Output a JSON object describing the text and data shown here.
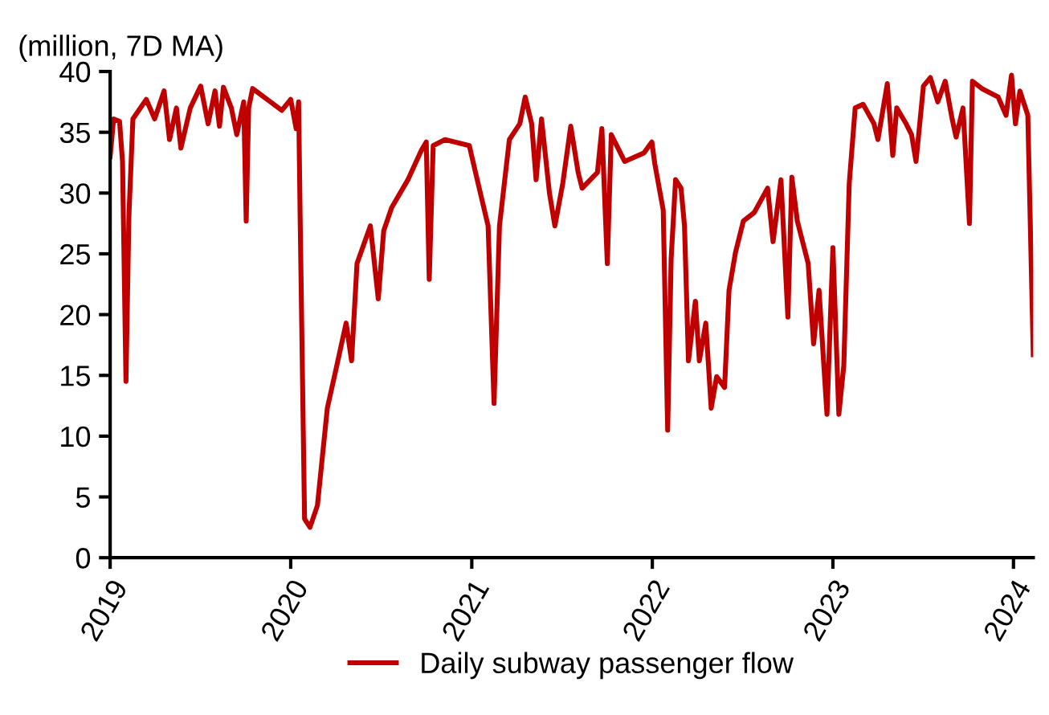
{
  "chart_data": {
    "type": "line",
    "ylabel": "(million, 7D MA)",
    "xlim": [
      "2019-01-01",
      "2024-02-10"
    ],
    "ylim": [
      0,
      40
    ],
    "yticks": [
      0,
      5,
      10,
      15,
      20,
      25,
      30,
      35,
      40
    ],
    "xticks": [
      {
        "value": "2019-01-01",
        "label": "2019"
      },
      {
        "value": "2020-01-01",
        "label": "2020"
      },
      {
        "value": "2021-01-01",
        "label": "2021"
      },
      {
        "value": "2022-01-01",
        "label": "2022"
      },
      {
        "value": "2023-01-01",
        "label": "2023"
      },
      {
        "value": "2024-01-01",
        "label": "2024"
      }
    ],
    "grid": false,
    "legend": "bottom",
    "marker": "none",
    "line_style": "solid",
    "series": [
      {
        "name": "Daily subway passenger flow",
        "color": "#c00000",
        "x": [
          "2019-01-01",
          "2019-01-08",
          "2019-01-20",
          "2019-01-26",
          "2019-02-02",
          "2019-02-08",
          "2019-02-16",
          "2019-03-15",
          "2019-04-01",
          "2019-04-20",
          "2019-05-01",
          "2019-05-15",
          "2019-05-24",
          "2019-06-12",
          "2019-07-03",
          "2019-07-18",
          "2019-08-01",
          "2019-08-10",
          "2019-08-18",
          "2019-09-03",
          "2019-09-14",
          "2019-09-28",
          "2019-10-03",
          "2019-10-08",
          "2019-10-16",
          "2019-12-14",
          "2020-01-01",
          "2020-01-12",
          "2020-01-17",
          "2020-01-20",
          "2020-01-29",
          "2020-02-09",
          "2020-02-24",
          "2020-03-15",
          "2020-04-01",
          "2020-04-22",
          "2020-05-03",
          "2020-05-14",
          "2020-06-10",
          "2020-06-26",
          "2020-07-07",
          "2020-07-23",
          "2020-08-25",
          "2020-09-21",
          "2020-10-01",
          "2020-10-07",
          "2020-10-15",
          "2020-11-08",
          "2020-12-27",
          "2021-01-12",
          "2021-02-03",
          "2021-02-15",
          "2021-02-26",
          "2021-03-18",
          "2021-04-08",
          "2021-04-19",
          "2021-05-02",
          "2021-05-11",
          "2021-05-22",
          "2021-06-07",
          "2021-06-18",
          "2021-07-04",
          "2021-07-20",
          "2021-08-04",
          "2021-08-12",
          "2021-09-12",
          "2021-09-21",
          "2021-10-02",
          "2021-10-10",
          "2021-11-06",
          "2021-12-15",
          "2021-12-31",
          "2022-01-06",
          "2022-01-23",
          "2022-02-01",
          "2022-02-08",
          "2022-02-17",
          "2022-02-28",
          "2022-03-07",
          "2022-03-15",
          "2022-03-29",
          "2022-04-06",
          "2022-04-19",
          "2022-04-30",
          "2022-05-11",
          "2022-05-27",
          "2022-06-05",
          "2022-06-18",
          "2022-07-04",
          "2022-07-26",
          "2022-08-22",
          "2022-09-02",
          "2022-09-18",
          "2022-10-02",
          "2022-10-10",
          "2022-10-21",
          "2022-11-12",
          "2022-11-23",
          "2022-12-04",
          "2022-12-20",
          "2023-01-01",
          "2023-01-13",
          "2023-01-23",
          "2023-02-03",
          "2023-02-15",
          "2023-03-03",
          "2023-03-25",
          "2023-04-02",
          "2023-04-21",
          "2023-05-02",
          "2023-05-10",
          "2023-05-29",
          "2023-06-09",
          "2023-06-18",
          "2023-07-03",
          "2023-07-17",
          "2023-08-01",
          "2023-08-16",
          "2023-08-30",
          "2023-09-07",
          "2023-09-21",
          "2023-10-04",
          "2023-10-10",
          "2023-10-29",
          "2023-12-01",
          "2023-12-17",
          "2023-12-28",
          "2024-01-05",
          "2024-01-14",
          "2024-01-30",
          "2024-02-10"
        ],
        "values": [
          33.0,
          36.1,
          35.9,
          32.6,
          14.5,
          28.2,
          36.1,
          37.7,
          36.1,
          38.4,
          34.4,
          37.0,
          33.7,
          37.0,
          38.8,
          35.7,
          38.4,
          35.5,
          38.7,
          37.0,
          34.8,
          37.5,
          27.7,
          37.0,
          38.6,
          36.8,
          37.7,
          35.3,
          37.5,
          28.2,
          3.2,
          2.5,
          4.3,
          12.3,
          15.4,
          19.3,
          16.2,
          24.2,
          27.3,
          21.3,
          26.9,
          28.8,
          31.1,
          33.5,
          34.2,
          22.9,
          33.9,
          34.4,
          33.9,
          31.1,
          27.3,
          12.7,
          27.3,
          34.4,
          35.7,
          37.9,
          35.7,
          31.1,
          36.1,
          30.0,
          27.3,
          30.8,
          35.5,
          31.7,
          30.4,
          31.7,
          35.3,
          24.2,
          34.8,
          32.6,
          33.3,
          34.2,
          32.4,
          28.6,
          10.5,
          24.6,
          31.1,
          30.4,
          27.3,
          16.2,
          21.1,
          16.2,
          19.3,
          12.3,
          14.9,
          14.0,
          22.0,
          25.1,
          27.7,
          28.4,
          30.4,
          26.0,
          31.1,
          19.8,
          31.3,
          27.7,
          24.2,
          17.6,
          22.0,
          11.8,
          25.5,
          11.8,
          15.8,
          30.8,
          37.0,
          37.3,
          35.7,
          34.4,
          39.0,
          33.1,
          37.0,
          35.7,
          34.8,
          32.6,
          38.8,
          39.5,
          37.5,
          39.2,
          36.1,
          34.6,
          37.0,
          27.5,
          39.2,
          38.6,
          37.9,
          36.4,
          39.7,
          35.7,
          38.4,
          36.4,
          16.7
        ]
      }
    ]
  }
}
